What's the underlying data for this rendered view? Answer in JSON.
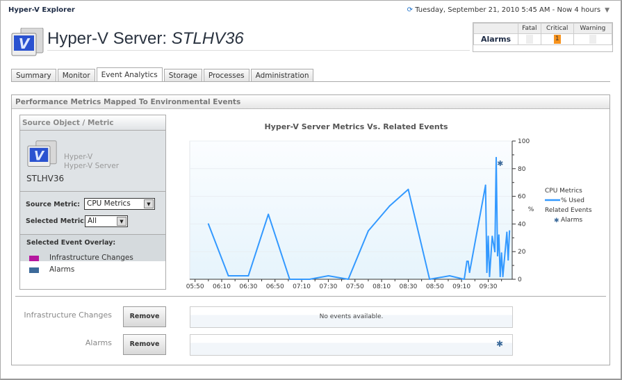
{
  "app": {
    "title": "Hyper-V Explorer",
    "time_range": "Tuesday, September 21, 2010 5:45 AM - Now 4 hours",
    "time_icon": "refresh-arrow-icon"
  },
  "header": {
    "title_prefix": "Hyper-V Server:",
    "server_name": "STLHV36",
    "icon": "hyper-v-server-icon"
  },
  "alarm_summary": {
    "row_label": "Alarms",
    "columns": [
      "Fatal",
      "Critical",
      "Warning"
    ],
    "values": [
      "",
      "1",
      ""
    ],
    "critical_color": "#f7931e"
  },
  "tabs": [
    {
      "label": "Summary"
    },
    {
      "label": "Monitor"
    },
    {
      "label": "Event Analytics",
      "active": true
    },
    {
      "label": "Storage"
    },
    {
      "label": "Processes"
    },
    {
      "label": "Administration"
    }
  ],
  "panel": {
    "title": "Performance Metrics Mapped To Environmental Events"
  },
  "source": {
    "title": "Source Object / Metric",
    "object_type": "Hyper-V",
    "object_subtype": "Hyper-V Server",
    "object_name": "STLHV36",
    "source_metric_label": "Source Metric:",
    "source_metric_value": "CPU Metrics",
    "selected_metric_label": "Selected Metric:",
    "selected_metric_value": "All",
    "overlay_label": "Selected Event Overlay:",
    "overlays": [
      {
        "label": "Infrastructure Changes",
        "color": "#b5179e"
      },
      {
        "label": "Alarms",
        "color": "#3c6a9a"
      }
    ]
  },
  "chart_data": {
    "type": "line",
    "title": "Hyper-V Server Metrics Vs. Related Events",
    "ylabel": "%",
    "ylim": [
      0,
      100
    ],
    "yticks": [
      0,
      20,
      40,
      60,
      80,
      100
    ],
    "xlim": [
      "05:46",
      "09:48"
    ],
    "xticks": [
      "05:50",
      "06:10",
      "06:30",
      "06:50",
      "07:10",
      "07:30",
      "07:50",
      "08:10",
      "08:30",
      "08:50",
      "09:10",
      "09:30"
    ],
    "legend": {
      "group1": "CPU Metrics",
      "group2": "Related Events",
      "placement": "right"
    },
    "series": [
      {
        "name": "% Used",
        "color": "#3399ff",
        "x": [
          "06:00",
          "06:15",
          "06:30",
          "06:45",
          "07:01",
          "07:16",
          "07:30",
          "07:45",
          "08:00",
          "08:16",
          "08:30",
          "08:46",
          "09:01",
          "09:12",
          "09:14",
          "09:15",
          "09:16",
          "09:28",
          "09:29",
          "09:30",
          "09:31",
          "09:33",
          "09:35",
          "09:36",
          "09:37",
          "09:38",
          "09:39",
          "09:40",
          "09:41",
          "09:44",
          "09:45",
          "09:46"
        ],
        "y": [
          40,
          2.5,
          2.5,
          47,
          0,
          0,
          2.5,
          0,
          35,
          53,
          65,
          0,
          2.5,
          0,
          13,
          13,
          5,
          68,
          5,
          31,
          2,
          31,
          20,
          88,
          17,
          32,
          2,
          19,
          2,
          34,
          14,
          35
        ]
      }
    ],
    "events": [
      {
        "name": "Alarms",
        "marker": "asterisk",
        "color": "#3c6a9a",
        "x": [
          "09:39"
        ],
        "y": [
          84
        ]
      }
    ]
  },
  "event_rows": [
    {
      "label": "Infrastructure Changes",
      "button": "Remove",
      "message": "No events available."
    },
    {
      "label": "Alarms",
      "button": "Remove",
      "message": ""
    }
  ]
}
